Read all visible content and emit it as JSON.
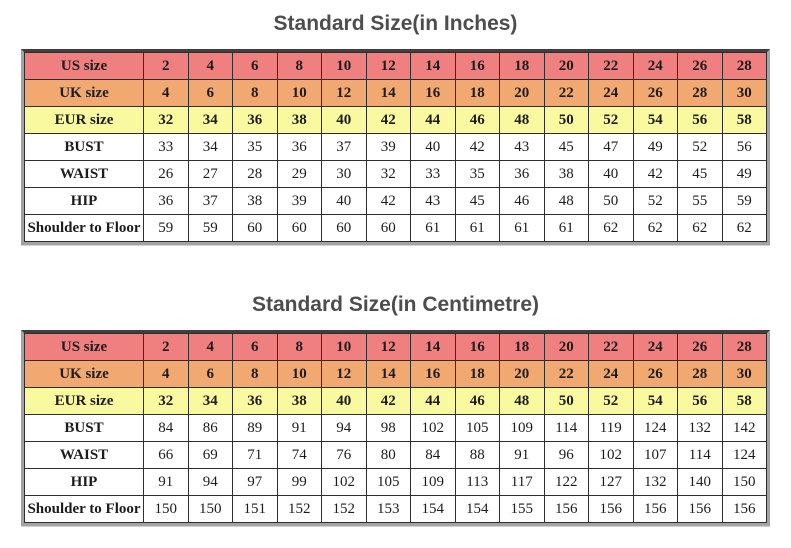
{
  "colors": {
    "us_row_bg": "#f08080",
    "uk_row_bg": "#f2a971",
    "eur_row_bg": "#f9f9a0",
    "plain_row_bg": "#ffffff",
    "title_color": "#4d4d4d"
  },
  "tables": [
    {
      "title": "Standard Size(in Inches)",
      "rows": [
        {
          "label": "US size",
          "style": "us",
          "values": [
            "2",
            "4",
            "6",
            "8",
            "10",
            "12",
            "14",
            "16",
            "18",
            "20",
            "22",
            "24",
            "26",
            "28"
          ]
        },
        {
          "label": "UK size",
          "style": "uk",
          "values": [
            "4",
            "6",
            "8",
            "10",
            "12",
            "14",
            "16",
            "18",
            "20",
            "22",
            "24",
            "26",
            "28",
            "30"
          ]
        },
        {
          "label": "EUR size",
          "style": "eur",
          "values": [
            "32",
            "34",
            "36",
            "38",
            "40",
            "42",
            "44",
            "46",
            "48",
            "50",
            "52",
            "54",
            "56",
            "58"
          ]
        },
        {
          "label": "BUST",
          "style": "plain",
          "values": [
            "33",
            "34",
            "35",
            "36",
            "37",
            "39",
            "40",
            "42",
            "43",
            "45",
            "47",
            "49",
            "52",
            "56"
          ]
        },
        {
          "label": "WAIST",
          "style": "plain",
          "values": [
            "26",
            "27",
            "28",
            "29",
            "30",
            "32",
            "33",
            "35",
            "36",
            "38",
            "40",
            "42",
            "45",
            "49"
          ]
        },
        {
          "label": "HIP",
          "style": "plain",
          "values": [
            "36",
            "37",
            "38",
            "39",
            "40",
            "42",
            "43",
            "45",
            "46",
            "48",
            "50",
            "52",
            "55",
            "59"
          ]
        },
        {
          "label": "Shoulder to Floor",
          "style": "plain",
          "values": [
            "59",
            "59",
            "60",
            "60",
            "60",
            "60",
            "61",
            "61",
            "61",
            "61",
            "62",
            "62",
            "62",
            "62"
          ]
        }
      ]
    },
    {
      "title": "Standard Size(in Centimetre)",
      "rows": [
        {
          "label": "US size",
          "style": "us",
          "values": [
            "2",
            "4",
            "6",
            "8",
            "10",
            "12",
            "14",
            "16",
            "18",
            "20",
            "22",
            "24",
            "26",
            "28"
          ]
        },
        {
          "label": "UK size",
          "style": "uk",
          "values": [
            "4",
            "6",
            "8",
            "10",
            "12",
            "14",
            "16",
            "18",
            "20",
            "22",
            "24",
            "26",
            "28",
            "30"
          ]
        },
        {
          "label": "EUR size",
          "style": "eur",
          "values": [
            "32",
            "34",
            "36",
            "38",
            "40",
            "42",
            "44",
            "46",
            "48",
            "50",
            "52",
            "54",
            "56",
            "58"
          ]
        },
        {
          "label": "BUST",
          "style": "plain",
          "values": [
            "84",
            "86",
            "89",
            "91",
            "94",
            "98",
            "102",
            "105",
            "109",
            "114",
            "119",
            "124",
            "132",
            "142"
          ]
        },
        {
          "label": "WAIST",
          "style": "plain",
          "values": [
            "66",
            "69",
            "71",
            "74",
            "76",
            "80",
            "84",
            "88",
            "91",
            "96",
            "102",
            "107",
            "114",
            "124"
          ]
        },
        {
          "label": "HIP",
          "style": "plain",
          "values": [
            "91",
            "94",
            "97",
            "99",
            "102",
            "105",
            "109",
            "113",
            "117",
            "122",
            "127",
            "132",
            "140",
            "150"
          ]
        },
        {
          "label": "Shoulder to Floor",
          "style": "plain",
          "values": [
            "150",
            "150",
            "151",
            "152",
            "152",
            "153",
            "154",
            "154",
            "155",
            "156",
            "156",
            "156",
            "156",
            "156"
          ]
        }
      ]
    }
  ]
}
